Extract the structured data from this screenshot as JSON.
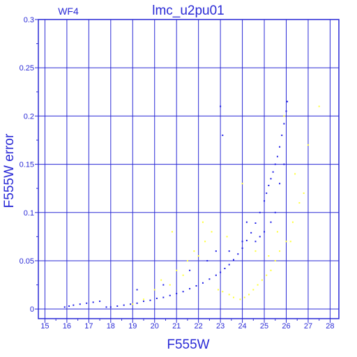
{
  "chart_data": {
    "type": "scatter",
    "title": "lmc_u2pu01",
    "corner_label": "WF4",
    "xlabel": "F555W",
    "ylabel": "F555W error",
    "xlim": [
      14.7,
      28.4
    ],
    "ylim": [
      -0.01,
      0.3
    ],
    "x_ticks": [
      15,
      16,
      17,
      18,
      19,
      20,
      21,
      22,
      23,
      24,
      25,
      26,
      27,
      28
    ],
    "y_ticks": [
      0,
      0.05,
      0.1,
      0.15,
      0.2,
      0.25,
      0.3
    ],
    "x_tick_labels": [
      "15",
      "16",
      "17",
      "18",
      "19",
      "20",
      "21",
      "22",
      "23",
      "24",
      "25",
      "26",
      "27",
      "28"
    ],
    "y_tick_labels": [
      "0",
      "0.05",
      "0.1",
      "0.15",
      "0.2",
      "0.25",
      "0.3"
    ],
    "grid": true,
    "colors": {
      "axis": "#2a2ad6",
      "grid": "#2a2ad6",
      "series_main": "#1a1ae6",
      "series_secondary": "#ffff33"
    },
    "series": [
      {
        "color": "#1a1ae6",
        "x": [
          15.9,
          16.1,
          16.3,
          16.6,
          16.9,
          17.2,
          17.5,
          17.8,
          18.0,
          18.3,
          18.6,
          18.9,
          19.2,
          19.5,
          19.8,
          20.1,
          20.4,
          20.7,
          21.0,
          21.3,
          21.6,
          21.9,
          22.2,
          22.5,
          22.8,
          23.0,
          23.2,
          23.4,
          23.6,
          23.8,
          24.0,
          24.2,
          24.4,
          24.6,
          24.8,
          25.0,
          25.1,
          25.2,
          25.3,
          25.4,
          25.5,
          25.6,
          25.7,
          25.8,
          25.9,
          26.0,
          26.05,
          23.0,
          23.1,
          22.8,
          24.2,
          24.6,
          25.0,
          25.3,
          25.5,
          25.7,
          25.9,
          19.2,
          20.4,
          21.6,
          22.4,
          23.4,
          24.0,
          24.8
        ],
        "y": [
          0.002,
          0.003,
          0.004,
          0.005,
          0.006,
          0.007,
          0.008,
          0.002,
          0.002,
          0.003,
          0.004,
          0.005,
          0.006,
          0.008,
          0.009,
          0.011,
          0.012,
          0.014,
          0.016,
          0.018,
          0.021,
          0.024,
          0.027,
          0.031,
          0.035,
          0.038,
          0.042,
          0.046,
          0.051,
          0.057,
          0.063,
          0.071,
          0.079,
          0.089,
          0.1,
          0.112,
          0.12,
          0.128,
          0.135,
          0.142,
          0.15,
          0.158,
          0.168,
          0.18,
          0.192,
          0.205,
          0.215,
          0.21,
          0.18,
          0.06,
          0.09,
          0.07,
          0.08,
          0.09,
          0.1,
          0.13,
          0.15,
          0.02,
          0.025,
          0.04,
          0.05,
          0.06,
          0.07,
          0.075
        ]
      },
      {
        "color": "#ffff33",
        "x": [
          19.0,
          19.5,
          20.0,
          20.3,
          20.7,
          21.0,
          21.3,
          21.5,
          21.8,
          22.0,
          22.3,
          22.6,
          22.9,
          23.1,
          23.4,
          23.6,
          23.9,
          24.1,
          24.3,
          24.5,
          24.7,
          24.9,
          25.1,
          25.3,
          25.5,
          25.7,
          26.0,
          26.3,
          26.6,
          27.0,
          27.5,
          20.8,
          22.2,
          23.3,
          24.0,
          24.6,
          25.2,
          25.6,
          26.2,
          26.8,
          25.9,
          26.4
        ],
        "y": [
          0.005,
          0.01,
          0.02,
          0.03,
          0.025,
          0.04,
          0.035,
          0.05,
          0.06,
          0.055,
          0.07,
          0.08,
          0.02,
          0.018,
          0.015,
          0.012,
          0.01,
          0.012,
          0.015,
          0.02,
          0.025,
          0.03,
          0.035,
          0.04,
          0.05,
          0.06,
          0.07,
          0.09,
          0.11,
          0.17,
          0.21,
          0.08,
          0.09,
          0.075,
          0.13,
          0.06,
          0.055,
          0.08,
          0.07,
          0.12,
          0.2,
          0.14
        ]
      }
    ]
  }
}
